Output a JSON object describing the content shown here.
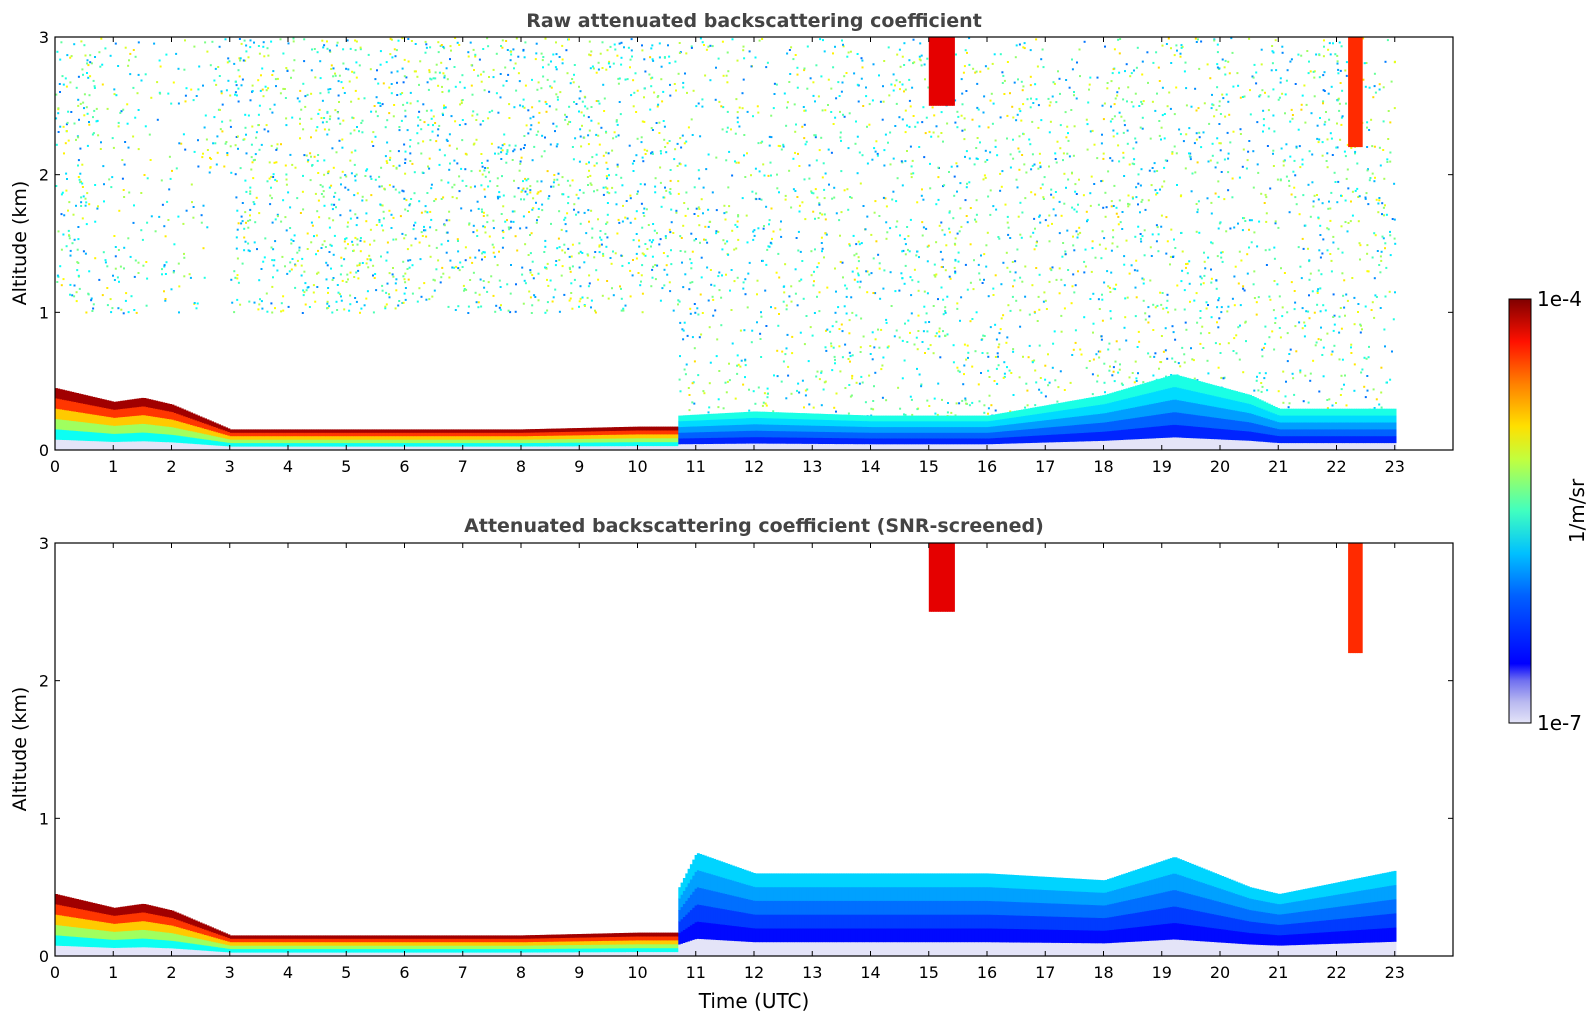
{
  "figure": {
    "colorbar": {
      "label": "1/m/sr",
      "max_label": "1e-4",
      "min_label": "1e-7",
      "log_min": -7,
      "log_max": -4,
      "colormap": "jet",
      "low_end_color": "#e4e4f8"
    },
    "xlabel": "Time (UTC)"
  },
  "chart_data": [
    {
      "type": "heatmap",
      "title": "Raw attenuated backscattering coefficient",
      "ylabel": "Altitude (km)",
      "xlabel": "",
      "x_range": [
        0,
        24
      ],
      "y_range": [
        0,
        3
      ],
      "x_ticks": [
        0,
        1,
        2,
        3,
        4,
        5,
        6,
        7,
        8,
        9,
        10,
        11,
        12,
        13,
        14,
        15,
        16,
        17,
        18,
        19,
        20,
        21,
        22,
        23
      ],
      "y_ticks": [
        0,
        1,
        2,
        3
      ],
      "data_x_extent": [
        0,
        23
      ],
      "color_scale": "log10 1/m/sr",
      "layers": [
        {
          "name": "boundary layer",
          "time": [
            0,
            1,
            1.5,
            2,
            3,
            4,
            6,
            8,
            10,
            10.7
          ],
          "top_km": [
            0.45,
            0.35,
            0.38,
            0.33,
            0.15,
            0.15,
            0.15,
            0.15,
            0.17,
            0.17
          ],
          "log_value": -4.1
        },
        {
          "name": "daytime aerosol",
          "time": [
            10.7,
            12,
            14,
            16,
            18,
            19.2,
            20.5,
            21,
            23
          ],
          "top_km": [
            0.25,
            0.28,
            0.25,
            0.25,
            0.4,
            0.55,
            0.4,
            0.3,
            0.3
          ],
          "log_value": -5.8
        },
        {
          "name": "virga 1",
          "time": [
            15.0,
            15.4
          ],
          "top_km": [
            3.0,
            3.0
          ],
          "bottom_km": 2.5,
          "log_value": -4.3
        },
        {
          "name": "virga 2",
          "time": [
            22.2,
            22.4
          ],
          "top_km": [
            3.0,
            3.0
          ],
          "bottom_km": 2.2,
          "log_value": -4.5
        }
      ],
      "noise_region": {
        "from_time": 0,
        "to_time": 23,
        "max_altitude_km": 3
      }
    },
    {
      "type": "heatmap",
      "title": "Attenuated backscattering coefficient (SNR-screened)",
      "ylabel": "Altitude (km)",
      "xlabel": "Time (UTC)",
      "x_range": [
        0,
        24
      ],
      "y_range": [
        0,
        3
      ],
      "x_ticks": [
        0,
        1,
        2,
        3,
        4,
        5,
        6,
        7,
        8,
        9,
        10,
        11,
        12,
        13,
        14,
        15,
        16,
        17,
        18,
        19,
        20,
        21,
        22,
        23
      ],
      "y_ticks": [
        0,
        1,
        2,
        3
      ],
      "data_x_extent": [
        0,
        23
      ],
      "color_scale": "log10 1/m/sr",
      "layers": [
        {
          "name": "boundary layer",
          "time": [
            0,
            1,
            1.5,
            2,
            3,
            4,
            6,
            8,
            10,
            10.7
          ],
          "top_km": [
            0.45,
            0.35,
            0.38,
            0.33,
            0.15,
            0.15,
            0.15,
            0.15,
            0.17,
            0.17
          ],
          "log_value": -4.1
        },
        {
          "name": "daytime aerosol",
          "time": [
            10.7,
            11,
            12,
            14,
            16,
            18,
            19.2,
            20.5,
            21,
            23
          ],
          "top_km": [
            0.5,
            0.75,
            0.6,
            0.6,
            0.6,
            0.55,
            0.72,
            0.5,
            0.45,
            0.62
          ],
          "log_value": -6.0
        },
        {
          "name": "virga 1",
          "time": [
            15.0,
            15.4
          ],
          "top_km": [
            3.0,
            3.0
          ],
          "bottom_km": 2.5,
          "log_value": -4.3
        },
        {
          "name": "virga 2",
          "time": [
            22.2,
            22.4
          ],
          "top_km": [
            3.0,
            3.0
          ],
          "bottom_km": 2.2,
          "log_value": -4.5
        }
      ]
    }
  ]
}
